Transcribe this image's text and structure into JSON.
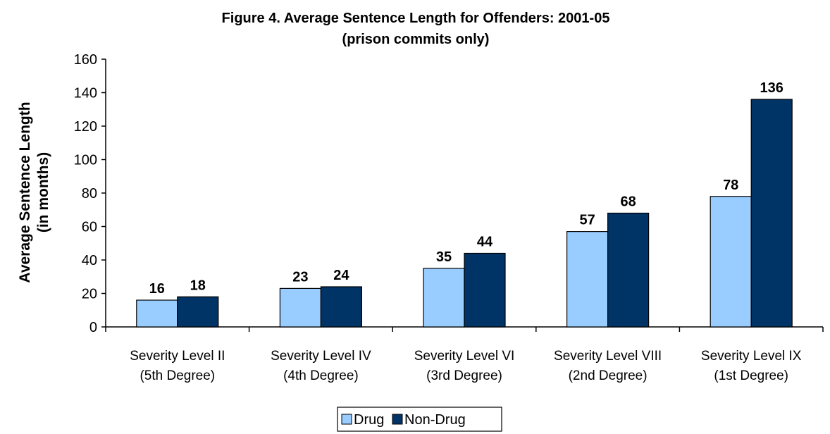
{
  "chart_data": {
    "type": "bar",
    "title": "Figure 4.  Average Sentence Length for Offenders: 2001-05",
    "subtitle": "(prison commits only)",
    "ylabel": "Average Sentence Length",
    "ylabel_line2": "(in months)",
    "xlabel": "",
    "ylim": [
      0,
      160
    ],
    "yticks": [
      0,
      20,
      40,
      60,
      80,
      100,
      120,
      140,
      160
    ],
    "categories": [
      {
        "line1": "Severity Level II",
        "line2": "(5th Degree)"
      },
      {
        "line1": "Severity Level IV",
        "line2": "(4th Degree)"
      },
      {
        "line1": "Severity Level VI",
        "line2": "(3rd Degree)"
      },
      {
        "line1": "Severity Level VIII",
        "line2": "(2nd Degree)"
      },
      {
        "line1": "Severity Level IX",
        "line2": "(1st Degree)"
      }
    ],
    "series": [
      {
        "name": "Drug",
        "color": "#99ccff",
        "values": [
          16,
          23,
          35,
          57,
          78
        ]
      },
      {
        "name": "Non-Drug",
        "color": "#003366",
        "values": [
          18,
          24,
          44,
          68,
          136
        ]
      }
    ],
    "grid": false,
    "legend_position": "bottom",
    "data_labels": true
  }
}
